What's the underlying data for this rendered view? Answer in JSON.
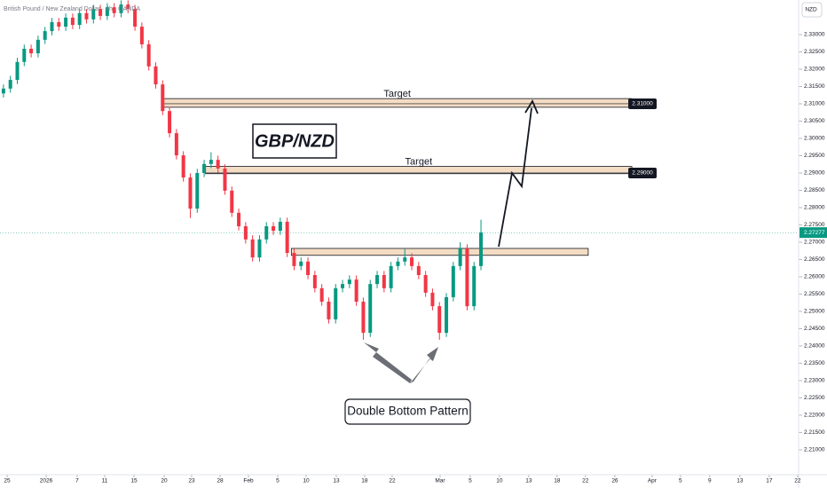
{
  "chart_data": {
    "type": "candlestick",
    "title": "British Pound / New Zealand Dollar · 4h · OANDA",
    "currency": "NZD",
    "symbol": "GBP/NZD",
    "pattern_label": "Double Bottom Pattern",
    "up_color": "#089981",
    "down_color": "#f23645",
    "open": [
      2.313,
      2.3144,
      2.3169,
      2.3221,
      2.3259,
      2.3246,
      2.3285,
      2.331,
      2.3336,
      2.3323,
      2.3349,
      2.3328,
      2.3362,
      2.3344,
      2.3374,
      2.3354,
      2.3379,
      2.3362,
      2.3387,
      2.3374,
      2.3323,
      2.3272,
      2.3208,
      2.3156,
      2.3079,
      2.3015,
      2.2951,
      2.2887,
      2.2797,
      2.29,
      2.2926,
      2.2938,
      2.2913,
      2.2849,
      2.2785,
      2.2746,
      2.2708,
      2.2656,
      2.2708,
      2.2746,
      2.2733,
      2.2759,
      2.2669,
      2.2631,
      2.2644,
      2.2605,
      2.2567,
      2.2528,
      2.2477,
      2.2567,
      2.2579,
      2.2592,
      2.2528,
      2.2438,
      2.2579,
      2.2605,
      2.2567,
      2.2631,
      2.2644,
      2.2656,
      2.2631,
      2.2605,
      2.2554,
      2.2515,
      2.2438,
      2.2541,
      2.2631,
      2.2682,
      2.2515,
      2.2631
    ],
    "high": [
      2.3156,
      2.3181,
      2.3233,
      2.3271,
      2.3271,
      2.3297,
      2.3322,
      2.3348,
      2.3348,
      2.3361,
      2.3361,
      2.3374,
      2.3374,
      2.3386,
      2.3386,
      2.3391,
      2.3391,
      2.3399,
      2.3399,
      2.3386,
      2.3335,
      2.3284,
      2.322,
      2.3168,
      2.3091,
      2.3027,
      2.2963,
      2.2899,
      2.2912,
      2.2938,
      2.296,
      2.295,
      2.2925,
      2.2861,
      2.2797,
      2.2758,
      2.272,
      2.272,
      2.2758,
      2.2758,
      2.2771,
      2.2771,
      2.2681,
      2.2656,
      2.2656,
      2.2617,
      2.2579,
      2.254,
      2.2579,
      2.2591,
      2.2604,
      2.2604,
      2.254,
      2.2591,
      2.2617,
      2.2617,
      2.2643,
      2.2656,
      2.268,
      2.2668,
      2.2643,
      2.2617,
      2.2566,
      2.2527,
      2.2553,
      2.2643,
      2.27,
      2.2694,
      2.2643,
      2.2765
    ],
    "low": [
      2.3118,
      2.3132,
      2.3157,
      2.3209,
      2.3234,
      2.3234,
      2.3273,
      2.3298,
      2.3311,
      2.3311,
      2.3316,
      2.3316,
      2.3332,
      2.3332,
      2.3342,
      2.3342,
      2.335,
      2.335,
      2.3362,
      2.3311,
      2.326,
      2.3196,
      2.3144,
      2.3067,
      2.3003,
      2.2939,
      2.2875,
      2.277,
      2.2785,
      2.2888,
      2.2914,
      2.2901,
      2.2837,
      2.2773,
      2.2734,
      2.2696,
      2.2644,
      2.2644,
      2.2696,
      2.2721,
      2.2721,
      2.2657,
      2.2619,
      2.2619,
      2.2593,
      2.2555,
      2.2516,
      2.2465,
      2.2465,
      2.2555,
      2.2567,
      2.2516,
      2.2418,
      2.2426,
      2.2567,
      2.2555,
      2.2555,
      2.2619,
      2.2632,
      2.2619,
      2.2593,
      2.2542,
      2.2503,
      2.2418,
      2.2426,
      2.2529,
      2.2619,
      2.2503,
      2.2503,
      2.2619
    ],
    "close": [
      2.3144,
      2.3169,
      2.3221,
      2.3259,
      2.3246,
      2.3285,
      2.331,
      2.3336,
      2.3323,
      2.3349,
      2.3328,
      2.3362,
      2.3344,
      2.3374,
      2.3354,
      2.3379,
      2.3362,
      2.3387,
      2.3374,
      2.3323,
      2.3272,
      2.3208,
      2.3156,
      2.3079,
      2.3015,
      2.2951,
      2.2887,
      2.2797,
      2.29,
      2.2926,
      2.2938,
      2.2913,
      2.2849,
      2.2785,
      2.2746,
      2.2708,
      2.2656,
      2.2708,
      2.2746,
      2.2733,
      2.2759,
      2.2669,
      2.2631,
      2.2644,
      2.2605,
      2.2567,
      2.2528,
      2.2477,
      2.2567,
      2.2579,
      2.2592,
      2.2528,
      2.2438,
      2.2579,
      2.2605,
      2.2567,
      2.2631,
      2.2644,
      2.2656,
      2.2631,
      2.2605,
      2.2554,
      2.2515,
      2.2438,
      2.2541,
      2.2631,
      2.2682,
      2.2515,
      2.2631,
      2.2728
    ],
    "xlim": [
      -0.5,
      114.9
    ],
    "ylim": [
      2.2028,
      2.34
    ],
    "xticks": [
      {
        "value": 0.53,
        "label": "25"
      },
      {
        "value": 6.17,
        "label": "2026"
      },
      {
        "value": 10.65,
        "label": "7"
      },
      {
        "value": 14.63,
        "label": "11"
      },
      {
        "value": 18.86,
        "label": "15"
      },
      {
        "value": 23.22,
        "label": "20"
      },
      {
        "value": 27.19,
        "label": "23"
      },
      {
        "value": 31.3,
        "label": "28"
      },
      {
        "value": 35.4,
        "label": "Feb"
      },
      {
        "value": 39.63,
        "label": "5"
      },
      {
        "value": 43.73,
        "label": "10"
      },
      {
        "value": 48.09,
        "label": "13"
      },
      {
        "value": 52.19,
        "label": "18"
      },
      {
        "value": 56.17,
        "label": "22"
      },
      {
        "value": 63.09,
        "label": "Mar"
      },
      {
        "value": 67.45,
        "label": "5"
      },
      {
        "value": 71.68,
        "label": "10"
      },
      {
        "value": 75.9,
        "label": "13"
      },
      {
        "value": 80.0,
        "label": "18"
      },
      {
        "value": 84.1,
        "label": "22"
      },
      {
        "value": 88.35,
        "label": "26"
      },
      {
        "value": 93.73,
        "label": "Apr"
      },
      {
        "value": 97.83,
        "label": "5"
      },
      {
        "value": 102.06,
        "label": "9"
      },
      {
        "value": 106.42,
        "label": "13"
      },
      {
        "value": 110.65,
        "label": "17"
      },
      {
        "value": 114.76,
        "label": "22"
      }
    ],
    "yticks": [
      {
        "value": 2.21,
        "label": "2.21000"
      },
      {
        "value": 2.215,
        "label": "2.21500"
      },
      {
        "value": 2.22,
        "label": "2.22000"
      },
      {
        "value": 2.225,
        "label": "2.22500"
      },
      {
        "value": 2.23,
        "label": "2.23000"
      },
      {
        "value": 2.235,
        "label": "2.23500"
      },
      {
        "value": 2.24,
        "label": "2.24000"
      },
      {
        "value": 2.245,
        "label": "2.24500"
      },
      {
        "value": 2.25,
        "label": "2.25000"
      },
      {
        "value": 2.255,
        "label": "2.25500"
      },
      {
        "value": 2.26,
        "label": "2.26000"
      },
      {
        "value": 2.265,
        "label": "2.26500"
      },
      {
        "value": 2.27,
        "label": "2.27000"
      },
      {
        "value": 2.275,
        "label": "2.27500"
      },
      {
        "value": 2.28,
        "label": "2.28000"
      },
      {
        "value": 2.285,
        "label": "2.28500"
      },
      {
        "value": 2.29,
        "label": "2.29000"
      },
      {
        "value": 2.295,
        "label": "2.29500"
      },
      {
        "value": 2.3,
        "label": "2.30000"
      },
      {
        "value": 2.305,
        "label": "2.30500"
      },
      {
        "value": 2.31,
        "label": "2.31000"
      },
      {
        "value": 2.315,
        "label": "2.31500"
      },
      {
        "value": 2.32,
        "label": "2.32000"
      },
      {
        "value": 2.325,
        "label": "2.32500"
      },
      {
        "value": 2.33,
        "label": "2.33000"
      }
    ],
    "last_price": 2.27277,
    "zones": [
      {
        "label": "Target",
        "top": 2.3115,
        "bottom": 2.309,
        "start": 23.0,
        "end": 90.8,
        "level": {
          "value": 2.31,
          "label": "2.31000"
        }
      },
      {
        "label": "Target",
        "top": 2.2919,
        "bottom": 2.2898,
        "start": 29.2,
        "end": 90.8,
        "level": {
          "value": 2.29,
          "label": "2.29000"
        }
      },
      {
        "top": 2.2682,
        "bottom": 2.2662,
        "start": 41.6,
        "end": 84.5
      }
    ]
  }
}
